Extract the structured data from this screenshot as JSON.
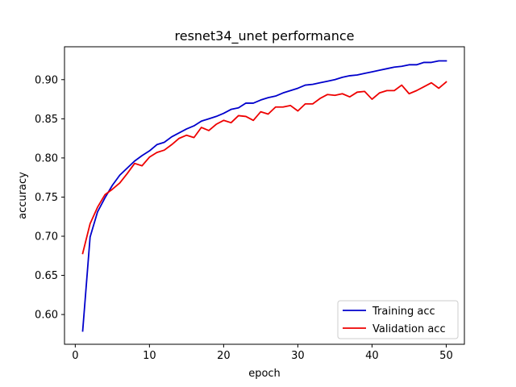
{
  "chart_data": {
    "type": "line",
    "title": "resnet34_unet performance",
    "xlabel": "epoch",
    "ylabel": "accuracy",
    "xlim": [
      -1.45,
      52.45
    ],
    "ylim": [
      0.562,
      0.942
    ],
    "x_ticks": [
      0,
      10,
      20,
      30,
      40,
      50
    ],
    "y_ticks": [
      0.6,
      0.65,
      0.7,
      0.75,
      0.8,
      0.85,
      0.9
    ],
    "x_tick_labels": [
      "0",
      "10",
      "20",
      "30",
      "40",
      "50"
    ],
    "y_tick_labels": [
      "0.60",
      "0.65",
      "0.70",
      "0.75",
      "0.80",
      "0.85",
      "0.90"
    ],
    "grid": false,
    "legend_position": "lower-right",
    "x": [
      1,
      2,
      3,
      4,
      5,
      6,
      7,
      8,
      9,
      10,
      11,
      12,
      13,
      14,
      15,
      16,
      17,
      18,
      19,
      20,
      21,
      22,
      23,
      24,
      25,
      26,
      27,
      28,
      29,
      30,
      31,
      32,
      33,
      34,
      35,
      36,
      37,
      38,
      39,
      40,
      41,
      42,
      43,
      44,
      45,
      46,
      47,
      48,
      49,
      50
    ],
    "series": [
      {
        "name": "Training acc",
        "color": "#0000cc",
        "values": [
          0.579,
          0.699,
          0.731,
          0.749,
          0.765,
          0.778,
          0.787,
          0.796,
          0.803,
          0.809,
          0.817,
          0.82,
          0.827,
          0.832,
          0.837,
          0.841,
          0.847,
          0.85,
          0.853,
          0.857,
          0.862,
          0.864,
          0.87,
          0.87,
          0.874,
          0.877,
          0.879,
          0.883,
          0.886,
          0.889,
          0.893,
          0.894,
          0.896,
          0.898,
          0.9,
          0.903,
          0.905,
          0.906,
          0.908,
          0.91,
          0.912,
          0.914,
          0.916,
          0.917,
          0.919,
          0.919,
          0.922,
          0.922,
          0.924,
          0.924
        ]
      },
      {
        "name": "Validation acc",
        "color": "#ee0000",
        "values": [
          0.678,
          0.716,
          0.737,
          0.753,
          0.76,
          0.768,
          0.78,
          0.793,
          0.79,
          0.801,
          0.807,
          0.81,
          0.817,
          0.825,
          0.829,
          0.826,
          0.839,
          0.835,
          0.843,
          0.848,
          0.845,
          0.854,
          0.853,
          0.848,
          0.859,
          0.856,
          0.865,
          0.865,
          0.867,
          0.86,
          0.869,
          0.869,
          0.876,
          0.881,
          0.88,
          0.882,
          0.878,
          0.884,
          0.885,
          0.875,
          0.883,
          0.886,
          0.886,
          0.893,
          0.882,
          0.886,
          0.891,
          0.896,
          0.889,
          0.897
        ]
      }
    ]
  }
}
